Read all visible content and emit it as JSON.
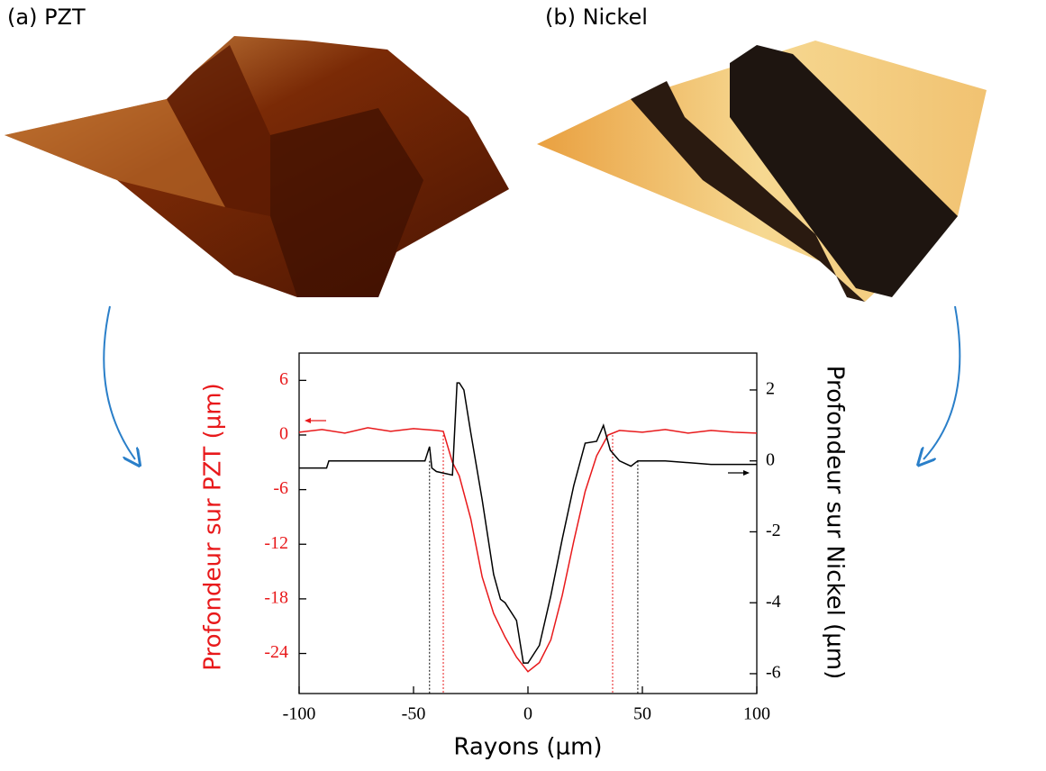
{
  "panels": [
    {
      "label": "(a) PZT"
    },
    {
      "label": "(b) Nickel"
    }
  ],
  "chart_data": {
    "type": "line",
    "xlabel": "Rayons (µm)",
    "ylabel": "Profondeur sur PZT (µm)",
    "y2label": "Profondeur sur Nickel (µm)",
    "xlim": [
      -100,
      100
    ],
    "xticks": [
      -100,
      -50,
      0,
      50,
      100
    ],
    "ylim": [
      -28.4,
      9
    ],
    "yticks": [
      6,
      0,
      -6,
      -12,
      -18,
      -24
    ],
    "y2lim": [
      -6.56,
      3.04
    ],
    "y2ticks": [
      2,
      0,
      -2,
      -4,
      -6
    ],
    "series": [
      {
        "color": "#e8191b",
        "axis": "y",
        "x": [
          -100,
          -90,
          -80,
          -70,
          -60,
          -50,
          -40,
          -37,
          -33,
          -30,
          -25,
          -20,
          -15,
          -10,
          -5,
          0,
          5,
          10,
          15,
          20,
          25,
          30,
          35,
          40,
          50,
          60,
          70,
          80,
          90,
          100
        ],
        "values": [
          0.3,
          0.6,
          0.2,
          0.8,
          0.4,
          0.7,
          0.5,
          0.4,
          -3,
          -4.5,
          -9.2,
          -15.6,
          -19.6,
          -22.2,
          -24.4,
          -26,
          -25,
          -22.5,
          -17.6,
          -11.7,
          -6.2,
          -2.3,
          0,
          0.5,
          0.3,
          0.6,
          0.2,
          0.5,
          0.3,
          0.2
        ]
      },
      {
        "color": "#000000",
        "axis": "y2",
        "x": [
          -100,
          -88,
          -87,
          -45,
          -43,
          -42,
          -40,
          -33,
          -31,
          -30,
          -28,
          -25,
          -20,
          -15,
          -12,
          -10,
          -5,
          -2,
          0,
          5,
          10,
          15,
          20,
          25,
          30,
          33,
          36,
          40,
          45,
          48,
          60,
          80,
          100
        ],
        "values": [
          -0.2,
          -0.2,
          0,
          0,
          0.4,
          -0.2,
          -0.3,
          -0.4,
          2.2,
          2.2,
          2.0,
          0.8,
          -1.1,
          -3.2,
          -3.9,
          -4,
          -4.5,
          -5.7,
          -5.7,
          -5.2,
          -3.8,
          -2.2,
          -0.7,
          0.5,
          0.55,
          1.0,
          0.3,
          0,
          -0.15,
          0,
          0,
          -0.1,
          -0.1
        ]
      }
    ],
    "reference_lines": [
      {
        "x": -43,
        "color": "#000000",
        "axis": "y2"
      },
      {
        "x": -37,
        "color": "#e8191b",
        "axis": "y"
      },
      {
        "x": 37,
        "color": "#e8191b",
        "axis": "y"
      },
      {
        "x": 48,
        "color": "#000000",
        "axis": "y2"
      }
    ]
  }
}
